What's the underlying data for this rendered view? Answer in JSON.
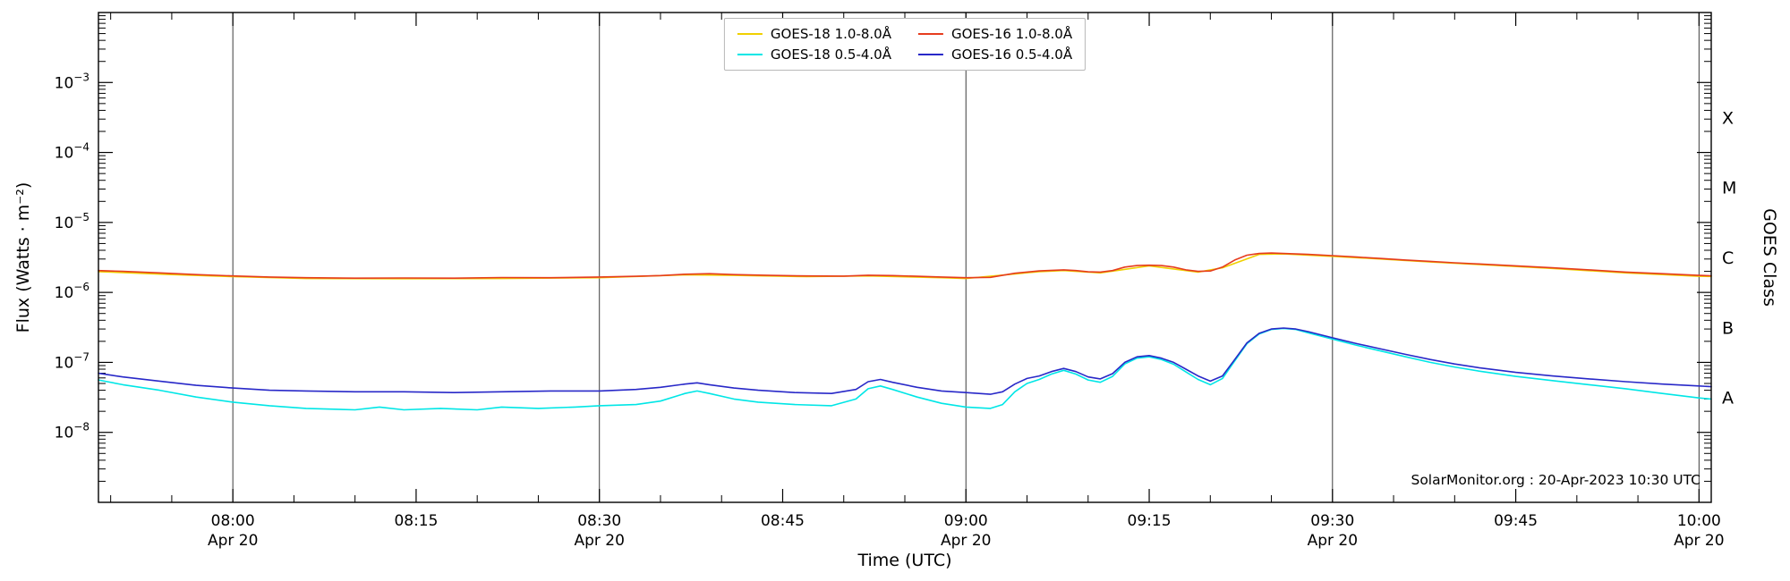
{
  "watermark": "SolarMonitor.org : 20-Apr-2023 10:30 UTC",
  "chart_data": {
    "type": "line",
    "xlabel": "Time (UTC)",
    "ylabel": "Flux (Watts · m⁻²)",
    "ylabel_right": "GOES Class",
    "x_date": "Apr 20",
    "xlim_minutes": [
      469,
      601
    ],
    "ylim": [
      1e-09,
      0.01
    ],
    "grid": "vertical-only",
    "legend_position": "top-center",
    "x_gridlines_minutes": [
      480,
      510,
      540,
      570,
      600
    ],
    "xticks": [
      {
        "t": 480,
        "label": "08:00",
        "date": "Apr 20"
      },
      {
        "t": 495,
        "label": "08:15"
      },
      {
        "t": 510,
        "label": "08:30",
        "date": "Apr 20"
      },
      {
        "t": 525,
        "label": "08:45"
      },
      {
        "t": 540,
        "label": "09:00",
        "date": "Apr 20"
      },
      {
        "t": 555,
        "label": "09:15"
      },
      {
        "t": 570,
        "label": "09:30",
        "date": "Apr 20"
      },
      {
        "t": 585,
        "label": "09:45"
      },
      {
        "t": 600,
        "label": "10:00",
        "date": "Apr 20"
      }
    ],
    "yticks": [
      {
        "value": 0.001,
        "base": "10",
        "exp": "−3"
      },
      {
        "value": 0.0001,
        "base": "10",
        "exp": "−4"
      },
      {
        "value": 1e-05,
        "base": "10",
        "exp": "−5"
      },
      {
        "value": 1e-06,
        "base": "10",
        "exp": "−6"
      },
      {
        "value": 1e-07,
        "base": "10",
        "exp": "−7"
      },
      {
        "value": 1e-08,
        "base": "10",
        "exp": "−8"
      }
    ],
    "goes_classes": [
      {
        "label": "X",
        "flux": 0.000316
      },
      {
        "label": "M",
        "flux": 3.16e-05
      },
      {
        "label": "C",
        "flux": 3.16e-06
      },
      {
        "label": "B",
        "flux": 3.16e-07
      },
      {
        "label": "A",
        "flux": 3.16e-08
      }
    ],
    "draw_order": [
      0,
      2,
      1,
      3
    ],
    "series": [
      {
        "id": "goes18-long",
        "label": "GOES-18 1.0-8.0Å",
        "color": "#f0d000",
        "points": [
          [
            469,
            1.98e-06
          ],
          [
            475,
            1.8e-06
          ],
          [
            480,
            1.68e-06
          ],
          [
            486,
            1.58e-06
          ],
          [
            494,
            1.57e-06
          ],
          [
            502,
            1.58e-06
          ],
          [
            510,
            1.62e-06
          ],
          [
            517,
            1.78e-06
          ],
          [
            521,
            1.75e-06
          ],
          [
            527,
            1.68e-06
          ],
          [
            532,
            1.72e-06
          ],
          [
            538,
            1.62e-06
          ],
          [
            540,
            1.58e-06
          ],
          [
            546,
            1.98e-06
          ],
          [
            548,
            2.05e-06
          ],
          [
            551,
            1.9e-06
          ],
          [
            555,
            2.4e-06
          ],
          [
            559,
            1.95e-06
          ],
          [
            561,
            2.25e-06
          ],
          [
            564,
            3.5e-06
          ],
          [
            566,
            3.55e-06
          ],
          [
            570,
            3.28e-06
          ],
          [
            574,
            3e-06
          ],
          [
            578,
            2.72e-06
          ],
          [
            582,
            2.5e-06
          ],
          [
            588,
            2.2e-06
          ],
          [
            594,
            1.9e-06
          ],
          [
            600,
            1.7e-06
          ],
          [
            601,
            1.69e-06
          ]
        ]
      },
      {
        "id": "goes18-short",
        "label": "GOES-18 0.5-4.0Å",
        "color": "#00e6e6",
        "points": [
          [
            469,
            5.6e-08
          ],
          [
            471,
            4.8e-08
          ],
          [
            474,
            4e-08
          ],
          [
            477,
            3.2e-08
          ],
          [
            480,
            2.7e-08
          ],
          [
            483,
            2.4e-08
          ],
          [
            486,
            2.2e-08
          ],
          [
            490,
            2.1e-08
          ],
          [
            492,
            2.3e-08
          ],
          [
            494,
            2.1e-08
          ],
          [
            497,
            2.2e-08
          ],
          [
            500,
            2.1e-08
          ],
          [
            502,
            2.3e-08
          ],
          [
            505,
            2.2e-08
          ],
          [
            508,
            2.3e-08
          ],
          [
            510,
            2.4e-08
          ],
          [
            513,
            2.5e-08
          ],
          [
            515,
            2.8e-08
          ],
          [
            517,
            3.6e-08
          ],
          [
            518,
            3.9e-08
          ],
          [
            519,
            3.6e-08
          ],
          [
            521,
            3e-08
          ],
          [
            523,
            2.7e-08
          ],
          [
            526,
            2.5e-08
          ],
          [
            529,
            2.4e-08
          ],
          [
            531,
            3e-08
          ],
          [
            532,
            4.2e-08
          ],
          [
            533,
            4.6e-08
          ],
          [
            534,
            4.1e-08
          ],
          [
            536,
            3.2e-08
          ],
          [
            538,
            2.6e-08
          ],
          [
            540,
            2.3e-08
          ],
          [
            542,
            2.2e-08
          ],
          [
            543,
            2.5e-08
          ],
          [
            544,
            3.8e-08
          ],
          [
            545,
            5e-08
          ],
          [
            546,
            5.7e-08
          ],
          [
            547,
            6.8e-08
          ],
          [
            548,
            7.7e-08
          ],
          [
            549,
            6.8e-08
          ],
          [
            550,
            5.6e-08
          ],
          [
            551,
            5.2e-08
          ],
          [
            552,
            6.3e-08
          ],
          [
            553,
            9.5e-08
          ],
          [
            554,
            1.15e-07
          ],
          [
            555,
            1.2e-07
          ],
          [
            556,
            1.1e-07
          ],
          [
            557,
            9.4e-08
          ],
          [
            558,
            7.3e-08
          ],
          [
            559,
            5.7e-08
          ],
          [
            560,
            4.8e-08
          ],
          [
            561,
            5.9e-08
          ],
          [
            562,
            1.05e-07
          ],
          [
            563,
            1.85e-07
          ],
          [
            564,
            2.55e-07
          ],
          [
            565,
            2.95e-07
          ],
          [
            566,
            3.05e-07
          ],
          [
            567,
            2.95e-07
          ],
          [
            568,
            2.65e-07
          ],
          [
            570,
            2.15e-07
          ],
          [
            572,
            1.75e-07
          ],
          [
            574,
            1.45e-07
          ],
          [
            576,
            1.2e-07
          ],
          [
            578,
            1e-07
          ],
          [
            580,
            8.6e-08
          ],
          [
            582,
            7.5e-08
          ],
          [
            585,
            6.3e-08
          ],
          [
            588,
            5.5e-08
          ],
          [
            591,
            4.8e-08
          ],
          [
            594,
            4.2e-08
          ],
          [
            597,
            3.6e-08
          ],
          [
            600,
            3.1e-08
          ],
          [
            601,
            3e-08
          ]
        ]
      },
      {
        "id": "goes16-long",
        "label": "GOES-16 1.0-8.0Å",
        "color": "#e63c1e",
        "points": [
          [
            469,
            2.05e-06
          ],
          [
            471,
            2e-06
          ],
          [
            474,
            1.9e-06
          ],
          [
            477,
            1.8e-06
          ],
          [
            480,
            1.72e-06
          ],
          [
            483,
            1.66e-06
          ],
          [
            486,
            1.62e-06
          ],
          [
            490,
            1.6e-06
          ],
          [
            494,
            1.61e-06
          ],
          [
            498,
            1.6e-06
          ],
          [
            502,
            1.63e-06
          ],
          [
            506,
            1.62e-06
          ],
          [
            510,
            1.66e-06
          ],
          [
            513,
            1.7e-06
          ],
          [
            515,
            1.74e-06
          ],
          [
            517,
            1.82e-06
          ],
          [
            519,
            1.85e-06
          ],
          [
            521,
            1.8e-06
          ],
          [
            524,
            1.75e-06
          ],
          [
            527,
            1.72e-06
          ],
          [
            530,
            1.71e-06
          ],
          [
            532,
            1.76e-06
          ],
          [
            534,
            1.74e-06
          ],
          [
            536,
            1.7e-06
          ],
          [
            538,
            1.66e-06
          ],
          [
            540,
            1.62e-06
          ],
          [
            542,
            1.64e-06
          ],
          [
            544,
            1.88e-06
          ],
          [
            546,
            2.03e-06
          ],
          [
            548,
            2.1e-06
          ],
          [
            549,
            2.05e-06
          ],
          [
            550,
            1.97e-06
          ],
          [
            551,
            1.95e-06
          ],
          [
            552,
            2.05e-06
          ],
          [
            553,
            2.3e-06
          ],
          [
            554,
            2.42e-06
          ],
          [
            555,
            2.45e-06
          ],
          [
            556,
            2.42e-06
          ],
          [
            557,
            2.3e-06
          ],
          [
            558,
            2.1e-06
          ],
          [
            559,
            2e-06
          ],
          [
            560,
            2.02e-06
          ],
          [
            561,
            2.3e-06
          ],
          [
            562,
            2.9e-06
          ],
          [
            563,
            3.4e-06
          ],
          [
            564,
            3.6e-06
          ],
          [
            565,
            3.65e-06
          ],
          [
            566,
            3.6e-06
          ],
          [
            568,
            3.5e-06
          ],
          [
            570,
            3.35e-06
          ],
          [
            572,
            3.2e-06
          ],
          [
            574,
            3.05e-06
          ],
          [
            576,
            2.9e-06
          ],
          [
            578,
            2.78e-06
          ],
          [
            580,
            2.65e-06
          ],
          [
            582,
            2.55e-06
          ],
          [
            585,
            2.4e-06
          ],
          [
            588,
            2.25e-06
          ],
          [
            591,
            2.1e-06
          ],
          [
            594,
            1.95e-06
          ],
          [
            597,
            1.85e-06
          ],
          [
            600,
            1.75e-06
          ],
          [
            601,
            1.73e-06
          ]
        ]
      },
      {
        "id": "goes16-short",
        "label": "GOES-16 0.5-4.0Å",
        "color": "#2828c8",
        "points": [
          [
            469,
            7e-08
          ],
          [
            471,
            6.2e-08
          ],
          [
            474,
            5.4e-08
          ],
          [
            477,
            4.7e-08
          ],
          [
            480,
            4.3e-08
          ],
          [
            483,
            4e-08
          ],
          [
            486,
            3.9e-08
          ],
          [
            490,
            3.8e-08
          ],
          [
            494,
            3.8e-08
          ],
          [
            498,
            3.7e-08
          ],
          [
            502,
            3.8e-08
          ],
          [
            506,
            3.9e-08
          ],
          [
            510,
            3.9e-08
          ],
          [
            513,
            4.1e-08
          ],
          [
            515,
            4.4e-08
          ],
          [
            517,
            4.9e-08
          ],
          [
            518,
            5.1e-08
          ],
          [
            519,
            4.8e-08
          ],
          [
            521,
            4.3e-08
          ],
          [
            523,
            4e-08
          ],
          [
            526,
            3.7e-08
          ],
          [
            529,
            3.6e-08
          ],
          [
            531,
            4.1e-08
          ],
          [
            532,
            5.3e-08
          ],
          [
            533,
            5.7e-08
          ],
          [
            534,
            5.2e-08
          ],
          [
            536,
            4.4e-08
          ],
          [
            538,
            3.9e-08
          ],
          [
            540,
            3.7e-08
          ],
          [
            542,
            3.5e-08
          ],
          [
            543,
            3.8e-08
          ],
          [
            544,
            4.9e-08
          ],
          [
            545,
            5.9e-08
          ],
          [
            546,
            6.4e-08
          ],
          [
            547,
            7.4e-08
          ],
          [
            548,
            8.2e-08
          ],
          [
            549,
            7.4e-08
          ],
          [
            550,
            6.2e-08
          ],
          [
            551,
            5.8e-08
          ],
          [
            552,
            6.9e-08
          ],
          [
            553,
            1e-07
          ],
          [
            554,
            1.2e-07
          ],
          [
            555,
            1.25e-07
          ],
          [
            556,
            1.15e-07
          ],
          [
            557,
            1e-07
          ],
          [
            558,
            8e-08
          ],
          [
            559,
            6.4e-08
          ],
          [
            560,
            5.4e-08
          ],
          [
            561,
            6.4e-08
          ],
          [
            562,
            1.1e-07
          ],
          [
            563,
            1.9e-07
          ],
          [
            564,
            2.6e-07
          ],
          [
            565,
            3e-07
          ],
          [
            566,
            3.1e-07
          ],
          [
            567,
            3e-07
          ],
          [
            568,
            2.75e-07
          ],
          [
            570,
            2.25e-07
          ],
          [
            572,
            1.85e-07
          ],
          [
            574,
            1.55e-07
          ],
          [
            576,
            1.3e-07
          ],
          [
            578,
            1.1e-07
          ],
          [
            580,
            9.5e-08
          ],
          [
            582,
            8.4e-08
          ],
          [
            585,
            7.2e-08
          ],
          [
            588,
            6.4e-08
          ],
          [
            591,
            5.8e-08
          ],
          [
            594,
            5.3e-08
          ],
          [
            597,
            4.9e-08
          ],
          [
            600,
            4.6e-08
          ],
          [
            601,
            4.5e-08
          ]
        ]
      }
    ]
  }
}
